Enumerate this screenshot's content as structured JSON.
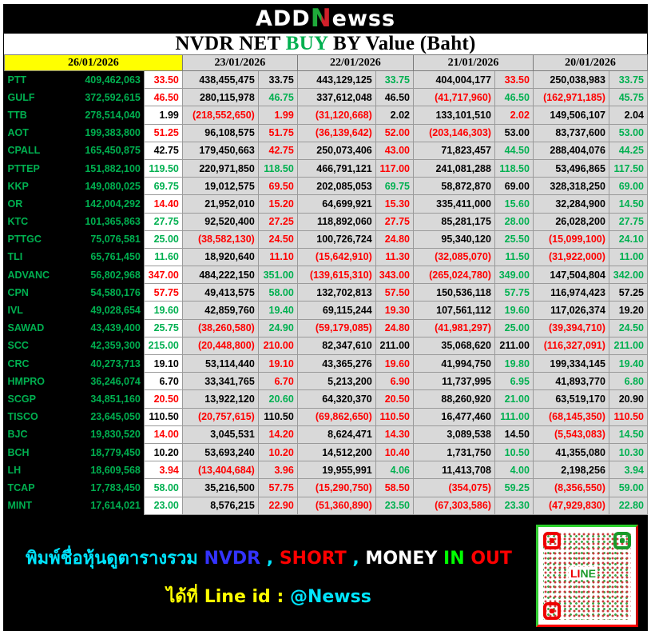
{
  "brand": {
    "logo_prefix": "ADD",
    "logo_n": "N",
    "logo_suffix": "ewss"
  },
  "title": {
    "part1": "NVDR NET ",
    "highlight": "BUY",
    "part2": " BY Value (Baht)"
  },
  "colors": {
    "g": "#00b050",
    "r": "#ff0000",
    "k": "#000000",
    "today_header": "#ffff00",
    "cell_bg": "#d9d9d9"
  },
  "dates": [
    "26/01/2026",
    "23/01/2026",
    "22/01/2026",
    "21/01/2026",
    "20/01/2026"
  ],
  "rows": [
    {
      "symbol": "PTT",
      "value": "409,462,063",
      "price": "33.50",
      "pc": "r",
      "days": [
        [
          "438,455,475",
          "33.75",
          "k"
        ],
        [
          "443,129,125",
          "33.75",
          "g"
        ],
        [
          "404,004,177",
          "33.50",
          "r"
        ],
        [
          "250,038,983",
          "33.75",
          "g"
        ]
      ]
    },
    {
      "symbol": "GULF",
      "value": "372,592,615",
      "price": "46.50",
      "pc": "r",
      "days": [
        [
          "280,115,978",
          "46.75",
          "g"
        ],
        [
          "337,612,048",
          "46.50",
          "k"
        ],
        [
          "(41,717,960)",
          "46.50",
          "g"
        ],
        [
          "(162,971,185)",
          "45.75",
          "g"
        ]
      ]
    },
    {
      "symbol": "TTB",
      "value": "278,514,040",
      "price": "1.99",
      "pc": "k",
      "days": [
        [
          "(218,552,650)",
          "1.99",
          "r"
        ],
        [
          "(31,120,668)",
          "2.02",
          "k"
        ],
        [
          "133,101,510",
          "2.02",
          "r"
        ],
        [
          "149,506,107",
          "2.04",
          "k"
        ]
      ]
    },
    {
      "symbol": "AOT",
      "value": "199,383,800",
      "price": "51.25",
      "pc": "r",
      "days": [
        [
          "96,108,575",
          "51.75",
          "r"
        ],
        [
          "(36,139,642)",
          "52.00",
          "r"
        ],
        [
          "(203,146,303)",
          "53.00",
          "k"
        ],
        [
          "83,737,600",
          "53.00",
          "g"
        ]
      ]
    },
    {
      "symbol": "CPALL",
      "value": "165,450,875",
      "price": "42.75",
      "pc": "k",
      "days": [
        [
          "179,450,663",
          "42.75",
          "r"
        ],
        [
          "250,073,406",
          "43.00",
          "r"
        ],
        [
          "71,823,457",
          "44.50",
          "g"
        ],
        [
          "288,404,076",
          "44.25",
          "g"
        ]
      ]
    },
    {
      "symbol": "PTTEP",
      "value": "151,882,100",
      "price": "119.50",
      "pc": "g",
      "days": [
        [
          "220,971,850",
          "118.50",
          "g"
        ],
        [
          "466,791,121",
          "117.00",
          "r"
        ],
        [
          "241,081,288",
          "118.50",
          "g"
        ],
        [
          "53,496,865",
          "117.50",
          "g"
        ]
      ]
    },
    {
      "symbol": "KKP",
      "value": "149,080,025",
      "price": "69.75",
      "pc": "g",
      "days": [
        [
          "19,012,575",
          "69.50",
          "r"
        ],
        [
          "202,085,053",
          "69.75",
          "g"
        ],
        [
          "58,872,870",
          "69.00",
          "k"
        ],
        [
          "328,318,250",
          "69.00",
          "g"
        ]
      ]
    },
    {
      "symbol": "OR",
      "value": "142,004,292",
      "price": "14.40",
      "pc": "r",
      "days": [
        [
          "21,952,010",
          "15.20",
          "r"
        ],
        [
          "64,699,921",
          "15.30",
          "r"
        ],
        [
          "335,411,000",
          "15.60",
          "g"
        ],
        [
          "32,284,900",
          "14.50",
          "g"
        ]
      ]
    },
    {
      "symbol": "KTC",
      "value": "101,365,863",
      "price": "27.75",
      "pc": "g",
      "days": [
        [
          "92,520,400",
          "27.25",
          "r"
        ],
        [
          "118,892,060",
          "27.75",
          "r"
        ],
        [
          "85,281,175",
          "28.00",
          "g"
        ],
        [
          "26,028,200",
          "27.75",
          "g"
        ]
      ]
    },
    {
      "symbol": "PTTGC",
      "value": "75,076,581",
      "price": "25.00",
      "pc": "g",
      "days": [
        [
          "(38,582,130)",
          "24.50",
          "r"
        ],
        [
          "100,726,724",
          "24.80",
          "r"
        ],
        [
          "95,340,120",
          "25.50",
          "g"
        ],
        [
          "(15,099,100)",
          "24.10",
          "g"
        ]
      ]
    },
    {
      "symbol": "TLI",
      "value": "65,761,450",
      "price": "11.60",
      "pc": "g",
      "days": [
        [
          "18,920,640",
          "11.10",
          "r"
        ],
        [
          "(15,642,910)",
          "11.30",
          "r"
        ],
        [
          "(32,085,070)",
          "11.50",
          "g"
        ],
        [
          "(31,922,000)",
          "11.00",
          "g"
        ]
      ]
    },
    {
      "symbol": "ADVANC",
      "value": "56,802,968",
      "price": "347.00",
      "pc": "r",
      "days": [
        [
          "484,222,150",
          "351.00",
          "g"
        ],
        [
          "(139,615,310)",
          "343.00",
          "r"
        ],
        [
          "(265,024,780)",
          "349.00",
          "g"
        ],
        [
          "147,504,804",
          "342.00",
          "g"
        ]
      ]
    },
    {
      "symbol": "CPN",
      "value": "54,580,176",
      "price": "57.75",
      "pc": "r",
      "days": [
        [
          "49,413,575",
          "58.00",
          "g"
        ],
        [
          "132,702,813",
          "57.50",
          "r"
        ],
        [
          "150,536,118",
          "57.75",
          "g"
        ],
        [
          "116,974,423",
          "57.25",
          "k"
        ]
      ]
    },
    {
      "symbol": "IVL",
      "value": "49,028,654",
      "price": "19.60",
      "pc": "g",
      "days": [
        [
          "42,859,760",
          "19.40",
          "g"
        ],
        [
          "69,115,244",
          "19.30",
          "r"
        ],
        [
          "107,561,112",
          "19.60",
          "g"
        ],
        [
          "117,026,374",
          "19.20",
          "k"
        ]
      ]
    },
    {
      "symbol": "SAWAD",
      "value": "43,439,400",
      "price": "25.75",
      "pc": "g",
      "days": [
        [
          "(38,260,580)",
          "24.90",
          "g"
        ],
        [
          "(59,179,085)",
          "24.80",
          "r"
        ],
        [
          "(41,981,297)",
          "25.00",
          "g"
        ],
        [
          "(39,394,710)",
          "24.50",
          "g"
        ]
      ]
    },
    {
      "symbol": "SCC",
      "value": "42,359,300",
      "price": "215.00",
      "pc": "g",
      "days": [
        [
          "(20,448,800)",
          "210.00",
          "r"
        ],
        [
          "82,347,610",
          "211.00",
          "k"
        ],
        [
          "35,068,620",
          "211.00",
          "k"
        ],
        [
          "(116,327,091)",
          "211.00",
          "g"
        ]
      ]
    },
    {
      "symbol": "CRC",
      "value": "40,273,713",
      "price": "19.10",
      "pc": "k",
      "days": [
        [
          "53,114,440",
          "19.10",
          "r"
        ],
        [
          "43,365,276",
          "19.60",
          "r"
        ],
        [
          "41,994,750",
          "19.80",
          "g"
        ],
        [
          "199,334,145",
          "19.40",
          "g"
        ]
      ]
    },
    {
      "symbol": "HMPRO",
      "value": "36,246,074",
      "price": "6.70",
      "pc": "k",
      "days": [
        [
          "33,341,765",
          "6.70",
          "r"
        ],
        [
          "5,213,200",
          "6.90",
          "r"
        ],
        [
          "11,737,995",
          "6.95",
          "g"
        ],
        [
          "41,893,770",
          "6.80",
          "g"
        ]
      ]
    },
    {
      "symbol": "SCGP",
      "value": "34,851,160",
      "price": "20.50",
      "pc": "r",
      "days": [
        [
          "13,922,120",
          "20.60",
          "g"
        ],
        [
          "64,320,370",
          "20.50",
          "r"
        ],
        [
          "88,260,920",
          "21.00",
          "g"
        ],
        [
          "63,519,170",
          "20.90",
          "k"
        ]
      ]
    },
    {
      "symbol": "TISCO",
      "value": "23,645,050",
      "price": "110.50",
      "pc": "k",
      "days": [
        [
          "(20,757,615)",
          "110.50",
          "k"
        ],
        [
          "(69,862,650)",
          "110.50",
          "r"
        ],
        [
          "16,477,460",
          "111.00",
          "g"
        ],
        [
          "(68,145,350)",
          "110.50",
          "r"
        ]
      ]
    },
    {
      "symbol": "BJC",
      "value": "19,830,520",
      "price": "14.00",
      "pc": "r",
      "days": [
        [
          "3,045,531",
          "14.20",
          "r"
        ],
        [
          "8,624,471",
          "14.30",
          "r"
        ],
        [
          "3,089,538",
          "14.50",
          "k"
        ],
        [
          "(5,543,083)",
          "14.50",
          "g"
        ]
      ]
    },
    {
      "symbol": "BCH",
      "value": "18,779,450",
      "price": "10.20",
      "pc": "k",
      "days": [
        [
          "53,693,240",
          "10.20",
          "r"
        ],
        [
          "14,512,200",
          "10.40",
          "r"
        ],
        [
          "1,731,750",
          "10.50",
          "g"
        ],
        [
          "41,355,080",
          "10.30",
          "g"
        ]
      ]
    },
    {
      "symbol": "LH",
      "value": "18,609,568",
      "price": "3.94",
      "pc": "r",
      "days": [
        [
          "(13,404,684)",
          "3.96",
          "r"
        ],
        [
          "19,955,991",
          "4.06",
          "g"
        ],
        [
          "11,413,708",
          "4.00",
          "g"
        ],
        [
          "2,198,256",
          "3.94",
          "g"
        ]
      ]
    },
    {
      "symbol": "TCAP",
      "value": "17,783,450",
      "price": "58.00",
      "pc": "g",
      "days": [
        [
          "35,216,500",
          "57.75",
          "r"
        ],
        [
          "(15,290,750)",
          "58.50",
          "r"
        ],
        [
          "(354,075)",
          "59.25",
          "g"
        ],
        [
          "(8,356,550)",
          "59.00",
          "g"
        ]
      ]
    },
    {
      "symbol": "MINT",
      "value": "17,614,021",
      "price": "23.00",
      "pc": "g",
      "days": [
        [
          "8,576,215",
          "22.90",
          "r"
        ],
        [
          "(51,360,890)",
          "23.50",
          "g"
        ],
        [
          "(67,303,586)",
          "23.30",
          "g"
        ],
        [
          "(47,929,830)",
          "22.80",
          "g"
        ]
      ]
    }
  ],
  "banner": {
    "line1": [
      {
        "text": "พิมพ์ชื่อหุ้นดูตารางรวม ",
        "color": "#00e5ff"
      },
      {
        "text": "NVDR",
        "color": "#3333ff"
      },
      {
        "text": " , ",
        "color": "#00e5ff"
      },
      {
        "text": "SHORT",
        "color": "#ff0000"
      },
      {
        "text": " , ",
        "color": "#00e5ff"
      },
      {
        "text": "MONEY ",
        "color": "#ffffff"
      },
      {
        "text": "IN ",
        "color": "#00ff00"
      },
      {
        "text": "OUT",
        "color": "#ff0000"
      }
    ],
    "line2": [
      {
        "text": "ได้ที่ Line id : ",
        "color": "#ffff00"
      },
      {
        "text": "@Newss",
        "color": "#00e5ff"
      }
    ],
    "qr_label_red": "LI",
    "qr_label_green": "NE"
  }
}
